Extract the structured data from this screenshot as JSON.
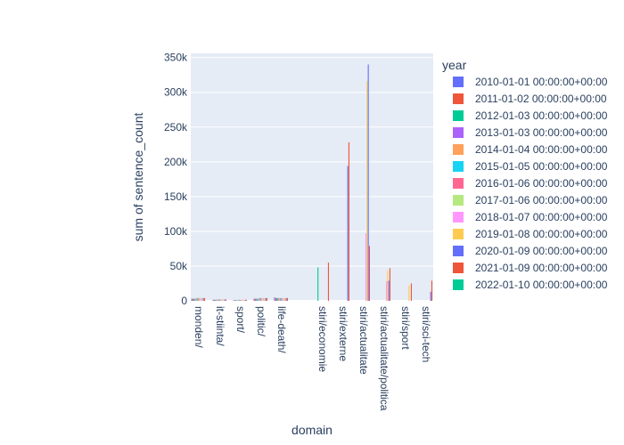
{
  "chart_data": {
    "type": "bar",
    "barmode": "group",
    "xlabel": "domain",
    "ylabel": "sum of sentence_count",
    "ylim": [
      0,
      356000
    ],
    "yticks": [
      0,
      50000,
      100000,
      150000,
      200000,
      250000,
      300000,
      350000
    ],
    "ytick_labels": [
      "0",
      "50k",
      "100k",
      "150k",
      "200k",
      "250k",
      "300k",
      "350k"
    ],
    "grid": true,
    "legend_title": "year",
    "legend_position": "right",
    "categories": [
      "monden/",
      "it-stiinta/",
      "sport/",
      "politic/",
      "life-death/",
      "stiri/economie",
      "stiri/externe",
      "stiri/actualitate",
      "stiri/actualitate/politica",
      "stiri/sport",
      "stiri/sci-tech"
    ],
    "series": [
      {
        "name": "2010-01-01 00:00:00+00:00",
        "color": "#636efa",
        "values": [
          3000,
          1500,
          1000,
          3000,
          5000,
          0,
          0,
          0,
          0,
          0,
          0
        ]
      },
      {
        "name": "2011-01-02 00:00:00+00:00",
        "color": "#ef553b",
        "values": [
          3000,
          1500,
          1000,
          3000,
          4000,
          0,
          0,
          0,
          0,
          0,
          0
        ]
      },
      {
        "name": "2012-01-03 00:00:00+00:00",
        "color": "#00cc96",
        "values": [
          3000,
          1500,
          1000,
          3000,
          4000,
          48000,
          0,
          0,
          0,
          0,
          0
        ]
      },
      {
        "name": "2013-01-03 00:00:00+00:00",
        "color": "#ab63fa",
        "values": [
          3000,
          1500,
          1000,
          3000,
          4000,
          0,
          0,
          0,
          0,
          0,
          0
        ]
      },
      {
        "name": "2014-01-04 00:00:00+00:00",
        "color": "#ffa15a",
        "values": [
          4000,
          2000,
          1500,
          4000,
          4000,
          0,
          0,
          0,
          0,
          0,
          0
        ]
      },
      {
        "name": "2015-01-05 00:00:00+00:00",
        "color": "#19d3f3",
        "values": [
          4000,
          2000,
          1500,
          4000,
          4000,
          0,
          0,
          0,
          0,
          0,
          0
        ]
      },
      {
        "name": "2016-01-06 00:00:00+00:00",
        "color": "#ff6692",
        "values": [
          4000,
          2000,
          1500,
          4000,
          4000,
          0,
          0,
          0,
          0,
          0,
          0
        ]
      },
      {
        "name": "2017-01-06 00:00:00+00:00",
        "color": "#b6e880",
        "values": [
          4000,
          2000,
          1500,
          4000,
          4000,
          0,
          0,
          0,
          0,
          0,
          0
        ]
      },
      {
        "name": "2018-01-07 00:00:00+00:00",
        "color": "#ff97ff",
        "values": [
          4000,
          2000,
          1500,
          4000,
          4000,
          0,
          0,
          97000,
          28000,
          0,
          0
        ]
      },
      {
        "name": "2019-01-08 00:00:00+00:00",
        "color": "#fecb52",
        "values": [
          4000,
          2000,
          1500,
          4000,
          4000,
          0,
          0,
          316000,
          44000,
          22000,
          0
        ]
      },
      {
        "name": "2020-01-09 00:00:00+00:00",
        "color": "#636efa",
        "values": [
          4000,
          2000,
          1500,
          4000,
          4000,
          0,
          194000,
          340000,
          29000,
          0,
          13000
        ]
      },
      {
        "name": "2021-01-09 00:00:00+00:00",
        "color": "#ef553b",
        "values": [
          4000,
          2000,
          1500,
          4000,
          4000,
          55000,
          228000,
          79000,
          47000,
          25000,
          29000
        ]
      },
      {
        "name": "2022-01-10 00:00:00+00:00",
        "color": "#00cc96",
        "values": [
          0,
          0,
          0,
          0,
          0,
          0,
          0,
          0,
          0,
          0,
          0
        ]
      }
    ],
    "extra_bars_note": ""
  }
}
